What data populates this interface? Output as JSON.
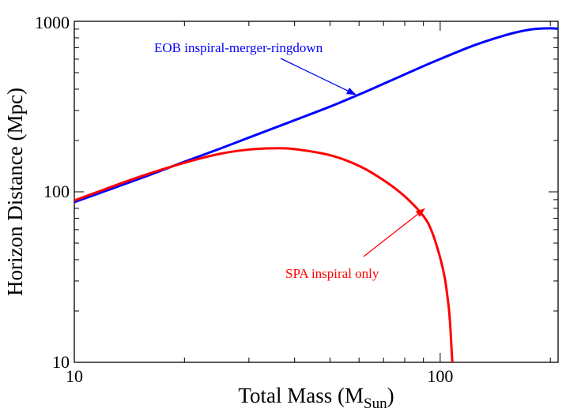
{
  "chart_data": {
    "type": "line",
    "xscale": "log",
    "yscale": "log",
    "xlim": [
      10,
      210
    ],
    "ylim": [
      10,
      1000
    ],
    "xlabel": "Total Mass (M",
    "xlabel_sub": "Sun",
    "xlabel_close": ")",
    "ylabel": "Horizon Distance (Mpc)",
    "x_ticks": [
      {
        "value": 10,
        "label": "10"
      },
      {
        "value": 100,
        "label": "100"
      }
    ],
    "y_ticks": [
      {
        "value": 10,
        "label": "10"
      },
      {
        "value": 100,
        "label": "100"
      },
      {
        "value": 1000,
        "label": "1000"
      }
    ],
    "series": [
      {
        "name": "EOB inspiral-merger-ringdown",
        "color": "#0000ff",
        "x": [
          10,
          15,
          20,
          25,
          30,
          40,
          50,
          60,
          70,
          80,
          90,
          100,
          120,
          140,
          160,
          180,
          200,
          210
        ],
        "y": [
          87,
          119,
          150,
          179,
          208,
          263,
          316,
          372,
          430,
          488,
          546,
          601,
          705,
          790,
          858,
          900,
          910,
          905
        ]
      },
      {
        "name": "SPA inspiral only",
        "color": "#ff0000",
        "x": [
          10,
          15,
          20,
          25,
          30,
          35,
          40,
          50,
          60,
          70,
          80,
          90,
          95,
          100,
          103,
          105,
          106,
          107,
          107.5,
          108
        ],
        "y": [
          89,
          122,
          148,
          167,
          177,
          180,
          178,
          164,
          142,
          117,
          94,
          72,
          58,
          41,
          31,
          23,
          19,
          14,
          11.5,
          10
        ]
      }
    ],
    "annotations": [
      {
        "text": "EOB inspiral-merger-ringdown",
        "color": "#0000ff",
        "points_to": [
          59,
          370
        ]
      },
      {
        "text": "SPA inspiral only",
        "color": "#ff0000",
        "points_to": [
          91,
          80
        ]
      }
    ]
  }
}
